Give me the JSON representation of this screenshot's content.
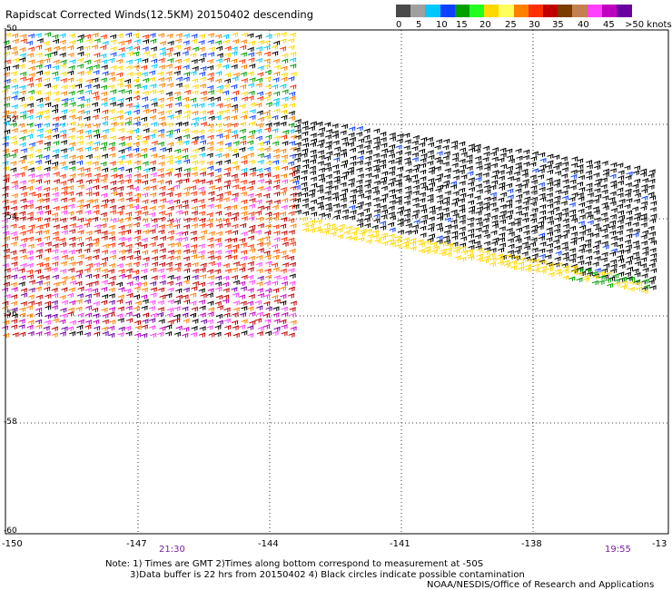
{
  "title": "Rapidscat Corrected Winds(12.5KM) 20150402 descending",
  "legend": {
    "colors": [
      "#4a4a4a",
      "#a0a0a0",
      "#00c8ff",
      "#1040ff",
      "#00a000",
      "#20ff20",
      "#ffd800",
      "#ffff60",
      "#ff8000",
      "#ff3000",
      "#c00000",
      "#7b3c00",
      "#c48050",
      "#ff40ff",
      "#c000c0",
      "#6a00a0"
    ],
    "labels": [
      "0",
      "5",
      "10",
      "15",
      "20",
      "25",
      "30",
      "35",
      "40",
      "45",
      ">50 knots"
    ]
  },
  "map": {
    "x_ticks": [
      "-150",
      "-147",
      "-144",
      "-141",
      "-138",
      "-13"
    ],
    "y_ticks": [
      "-50",
      "-52",
      "-54",
      "-56",
      "-58",
      "-60"
    ],
    "grid": "dotted"
  },
  "pass_times": [
    "21:30",
    "19:55"
  ],
  "notes": {
    "line1": "Note: 1) Times are GMT 2)Times along bottom correspond to measurement at -50S",
    "line2": "3)Data buffer is 22 hrs from 20150402 4) Black circles indicate possible contamination",
    "credit": "NOAA/NESDIS/Office of Research and Applications"
  }
}
